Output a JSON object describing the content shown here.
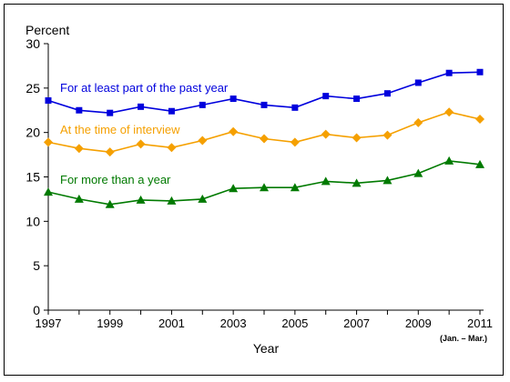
{
  "chart_data": {
    "type": "line",
    "ylabel": "Percent",
    "xlabel": "Year",
    "x_note": "(Jan. – Mar.)",
    "ylim": [
      0,
      30
    ],
    "yticks": [
      0,
      5,
      10,
      15,
      20,
      25,
      30
    ],
    "xlim": [
      1997,
      2011
    ],
    "xtick_labels": [
      "1997",
      "1999",
      "2001",
      "2003",
      "2005",
      "2007",
      "2009",
      "2011"
    ],
    "x": [
      1997,
      1998,
      1999,
      2000,
      2001,
      2002,
      2003,
      2004,
      2005,
      2006,
      2007,
      2008,
      2009,
      2010,
      2011
    ],
    "grid": false,
    "series": [
      {
        "name": "For at least part of the past year",
        "color": "#0000dd",
        "marker": "square",
        "values": [
          23.6,
          22.5,
          22.2,
          22.9,
          22.4,
          23.1,
          23.8,
          23.1,
          22.8,
          24.1,
          23.8,
          24.4,
          25.6,
          26.7,
          26.8
        ]
      },
      {
        "name": "At the time of interview",
        "color": "#f5a000",
        "marker": "diamond",
        "values": [
          18.9,
          18.2,
          17.8,
          18.7,
          18.3,
          19.1,
          20.1,
          19.3,
          18.9,
          19.8,
          19.4,
          19.7,
          21.1,
          22.3,
          21.5
        ]
      },
      {
        "name": "For more than a year",
        "color": "#007a00",
        "marker": "triangle",
        "values": [
          13.3,
          12.5,
          11.9,
          12.4,
          12.3,
          12.5,
          13.7,
          13.8,
          13.8,
          14.5,
          14.3,
          14.6,
          15.4,
          16.8,
          16.4
        ]
      }
    ]
  }
}
